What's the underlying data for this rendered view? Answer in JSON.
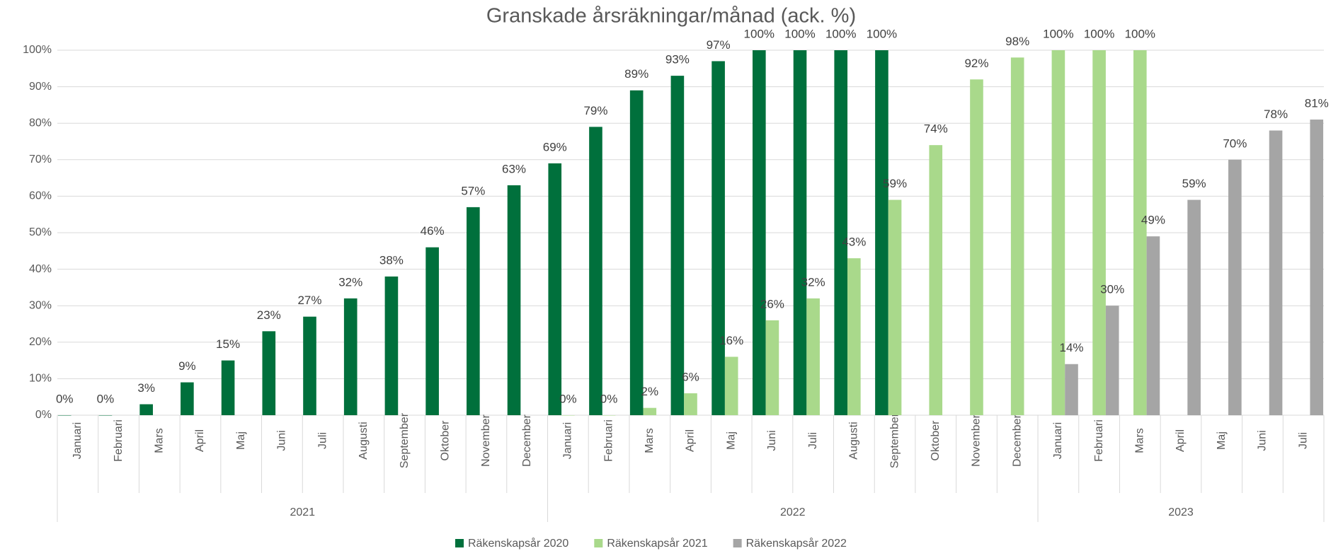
{
  "chart_data": {
    "type": "bar",
    "title": "Granskade årsräkningar/månad (ack. %)",
    "categories": [
      "Januari",
      "Februari",
      "Mars",
      "April",
      "Maj",
      "Juni",
      "Juli",
      "Augusti",
      "September",
      "Oktober",
      "November",
      "December",
      "Januari",
      "Februari",
      "Mars",
      "April",
      "Maj",
      "Juni",
      "Juli",
      "Augusti",
      "September",
      "Oktober",
      "November",
      "December",
      "Januari",
      "Februari",
      "Mars",
      "April",
      "Maj",
      "Juni",
      "Juli"
    ],
    "category_groups": [
      {
        "label": "2021",
        "size": 12
      },
      {
        "label": "2022",
        "size": 12
      },
      {
        "label": "2023",
        "size": 7
      }
    ],
    "series": [
      {
        "name": "Räkenskapsår 2020",
        "color": "#00703c",
        "values": [
          0,
          0,
          3,
          9,
          15,
          23,
          27,
          32,
          38,
          46,
          57,
          63,
          69,
          79,
          89,
          93,
          97,
          100,
          100,
          100,
          100,
          null,
          null,
          null,
          null,
          null,
          null,
          null,
          null,
          null,
          null
        ],
        "value_labels": [
          "0%",
          "0%",
          "3%",
          "9%",
          "15%",
          "23%",
          "27%",
          "32%",
          "38%",
          "46%",
          "57%",
          "63%",
          "69%",
          "79%",
          "89%",
          "93%",
          "97%",
          "100%",
          "100%",
          "100%",
          "100%",
          null,
          null,
          null,
          null,
          null,
          null,
          null,
          null,
          null,
          null
        ]
      },
      {
        "name": "Räkenskapsår 2021",
        "color": "#a9d98b",
        "values": [
          null,
          null,
          null,
          null,
          null,
          null,
          null,
          null,
          null,
          null,
          null,
          null,
          0,
          0,
          2,
          6,
          16,
          26,
          32,
          43,
          59,
          74,
          92,
          98,
          100,
          100,
          100,
          null,
          null,
          null,
          null
        ],
        "value_labels": [
          null,
          null,
          null,
          null,
          null,
          null,
          null,
          null,
          null,
          null,
          null,
          null,
          "0%",
          "0%",
          "2%",
          "6%",
          "16%",
          "26%",
          "32%",
          "43%",
          "59%",
          "74%",
          "92%",
          "98%",
          "100%",
          "100%",
          "100%",
          null,
          null,
          null,
          null
        ]
      },
      {
        "name": "Räkenskapsår 2022",
        "color": "#a5a5a5",
        "values": [
          null,
          null,
          null,
          null,
          null,
          null,
          null,
          null,
          null,
          null,
          null,
          null,
          null,
          null,
          null,
          null,
          null,
          null,
          null,
          null,
          null,
          null,
          null,
          null,
          14,
          30,
          49,
          59,
          70,
          78,
          81
        ],
        "value_labels": [
          null,
          null,
          null,
          null,
          null,
          null,
          null,
          null,
          null,
          null,
          null,
          null,
          null,
          null,
          null,
          null,
          null,
          null,
          null,
          null,
          null,
          null,
          null,
          null,
          "14%",
          "30%",
          "49%",
          "59%",
          "70%",
          "78%",
          "81%"
        ]
      }
    ],
    "ylim": [
      0,
      100
    ],
    "yticks": [
      {
        "value": 0,
        "label": "0%"
      },
      {
        "value": 10,
        "label": "10%"
      },
      {
        "value": 20,
        "label": "20%"
      },
      {
        "value": 30,
        "label": "30%"
      },
      {
        "value": 40,
        "label": "40%"
      },
      {
        "value": 50,
        "label": "50%"
      },
      {
        "value": 60,
        "label": "60%"
      },
      {
        "value": 70,
        "label": "70%"
      },
      {
        "value": 80,
        "label": "80%"
      },
      {
        "value": 90,
        "label": "90%"
      },
      {
        "value": 100,
        "label": "100%"
      }
    ],
    "grid": true,
    "legend": "bottom"
  }
}
